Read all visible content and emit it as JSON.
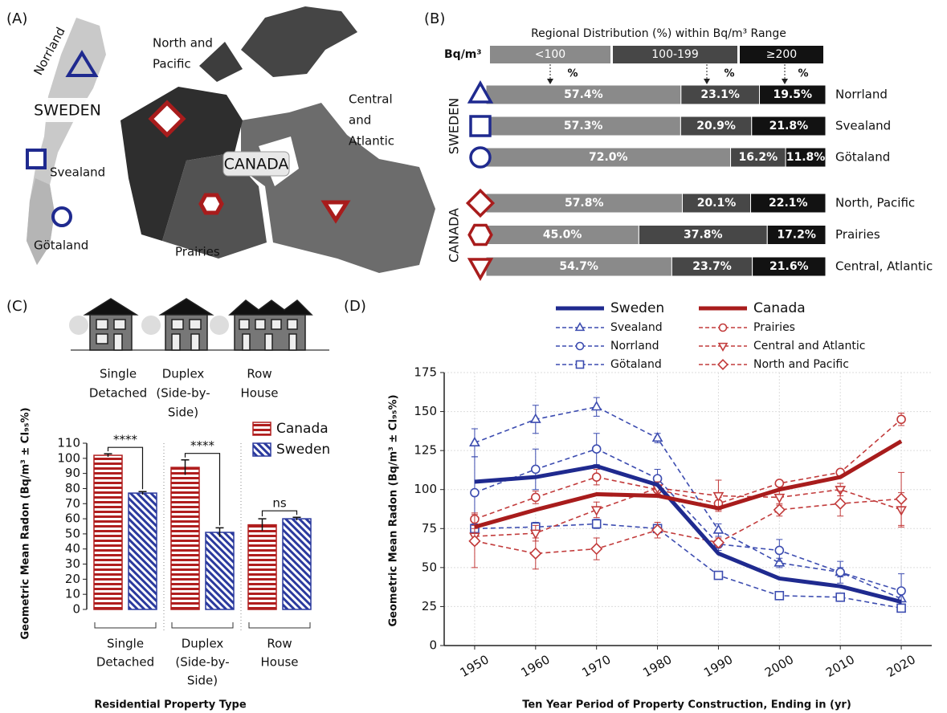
{
  "map_panel": {
    "label": "(A)",
    "sweden": {
      "name": "SWEDEN",
      "regions": [
        "Norrland",
        "Svealand",
        "Götaland"
      ]
    },
    "canada": {
      "name": "CANADA",
      "regions": [
        [
          "North and",
          "Pacific"
        ],
        "Prairies",
        [
          "Central",
          "and",
          "Atlantic"
        ]
      ]
    }
  },
  "chart_data": [
    {
      "type": "bar",
      "orientation": "horizontal",
      "stacked": true,
      "panel_label": "(B)",
      "title": "Regional Distribution (%) within Bq/m³ Range",
      "range_label": "Bq/m³",
      "unit_label": "%",
      "group_labels": [
        "SWEDEN",
        "CANADA"
      ],
      "categories": [
        "Norrland",
        "Svealand",
        "Götaland",
        "North, Pacific",
        "Prairies",
        "Central, Atlantic"
      ],
      "markers": [
        "triangle",
        "square",
        "circle",
        "diamond",
        "hexagon",
        "triangle-down"
      ],
      "marker_colors": [
        "#1f2a8f",
        "#1f2a8f",
        "#1f2a8f",
        "#a81c1c",
        "#a81c1c",
        "#a81c1c"
      ],
      "xlim": [
        0,
        100
      ],
      "series": [
        {
          "name": "<100",
          "color": "#8a8a8a",
          "values": [
            57.4,
            57.3,
            72.0,
            57.8,
            45.0,
            54.7
          ],
          "value_labels": [
            "57.4%",
            "57.3%",
            "72.0%",
            "57.8%",
            "45.0%",
            "54.7%"
          ]
        },
        {
          "name": "100-199",
          "color": "#474747",
          "values": [
            23.1,
            20.9,
            16.2,
            20.1,
            37.8,
            23.7
          ],
          "value_labels": [
            "23.1%",
            "20.9%",
            "16.2%",
            "20.1%",
            "37.8%",
            "23.7%"
          ]
        },
        {
          "name": "≥200",
          "color": "#121212",
          "values": [
            19.5,
            21.8,
            11.8,
            22.1,
            17.2,
            21.6
          ],
          "value_labels": [
            "19.5%",
            "21.8%",
            "11.8%",
            "22.1%",
            "17.2%",
            "21.6%"
          ]
        }
      ]
    },
    {
      "type": "bar",
      "panel_label": "(C)",
      "xlabel": "Residential Property Type",
      "ylabel": "Geometric Mean Radon (Bq/m³ ± CI₉₅%)",
      "categories": [
        [
          "Single",
          "Detached"
        ],
        [
          "Duplex",
          "(Side-by-",
          "Side)"
        ],
        [
          "Row",
          "House"
        ]
      ],
      "series": [
        {
          "name": "Canada",
          "color": "#b01e1e",
          "pattern": "horizontal-stripes",
          "values": [
            102,
            94,
            56
          ],
          "errors": [
            1,
            5,
            4
          ]
        },
        {
          "name": "Sweden",
          "color": "#2b3a9e",
          "pattern": "diagonal-stripes",
          "values": [
            77,
            51,
            60
          ],
          "errors": [
            1,
            3,
            1
          ]
        }
      ],
      "significance": [
        "****",
        "****",
        "ns"
      ],
      "ylim": [
        0,
        110
      ],
      "yticks": [
        0,
        10,
        20,
        30,
        40,
        50,
        60,
        70,
        80,
        90,
        100,
        110
      ],
      "legend": "upper right"
    },
    {
      "type": "line",
      "panel_label": "(D)",
      "xlabel": "Ten Year Period of Property Construction, Ending in (yr)",
      "ylabel": "Geometric Mean Radon (Bq/m³ ± CI₉₅%)",
      "x": [
        1950,
        1960,
        1970,
        1980,
        1990,
        2000,
        2010,
        2020
      ],
      "xlim": [
        1945,
        2025
      ],
      "xticks": [
        1950,
        1960,
        1970,
        1980,
        1990,
        2000,
        2010,
        2020
      ],
      "ylim": [
        0,
        175
      ],
      "yticks": [
        0,
        25,
        50,
        75,
        100,
        125,
        150,
        175
      ],
      "grid": true,
      "legend": "top",
      "series": [
        {
          "name": "Sweden",
          "color": "#1f2a8f",
          "line_style": "solid",
          "marker": "none",
          "values": [
            105,
            108,
            115,
            103,
            59,
            43,
            38,
            28
          ]
        },
        {
          "name": "Svealand",
          "color": "#3c4cb0",
          "line_style": "dashed",
          "marker": "triangle",
          "values": [
            130,
            145,
            153,
            133,
            74,
            53,
            47,
            30
          ],
          "errors": [
            9,
            9,
            6,
            3,
            4,
            3,
            3,
            4
          ]
        },
        {
          "name": "Norrland",
          "color": "#3c4cb0",
          "line_style": "dashed",
          "marker": "circle",
          "values": [
            98,
            113,
            126,
            107,
            65,
            61,
            47,
            35
          ],
          "errors": [
            23,
            13,
            10,
            6,
            4,
            7,
            7,
            11
          ]
        },
        {
          "name": "Götaland",
          "color": "#3c4cb0",
          "line_style": "dashed",
          "marker": "square",
          "values": [
            75,
            76,
            78,
            75,
            45,
            32,
            31,
            24
          ],
          "errors": [
            3,
            3,
            3,
            2,
            2,
            2,
            2,
            2
          ]
        },
        {
          "name": "Canada",
          "color": "#a81c1c",
          "line_style": "solid",
          "marker": "none",
          "values": [
            76,
            87,
            97,
            96,
            88,
            100,
            108,
            131
          ]
        },
        {
          "name": "Prairies",
          "color": "#c23b3b",
          "line_style": "dashed",
          "marker": "circle",
          "values": [
            81,
            95,
            108,
            100,
            91,
            104,
            111,
            145
          ],
          "errors": [
            4,
            4,
            5,
            3,
            4,
            2,
            2,
            4
          ]
        },
        {
          "name": "Central and Atlantic",
          "color": "#c23b3b",
          "line_style": "dashed",
          "marker": "triangle-down",
          "values": [
            70,
            72,
            87,
            101,
            96,
            95,
            100,
            87
          ],
          "errors": [
            5,
            5,
            5,
            4,
            10,
            5,
            4,
            11
          ]
        },
        {
          "name": "North and Pacific",
          "color": "#c23b3b",
          "line_style": "dashed",
          "marker": "diamond",
          "values": [
            67,
            59,
            62,
            74,
            66,
            87,
            91,
            94
          ],
          "errors": [
            17,
            10,
            7,
            5,
            3,
            4,
            8,
            17
          ]
        }
      ]
    }
  ]
}
